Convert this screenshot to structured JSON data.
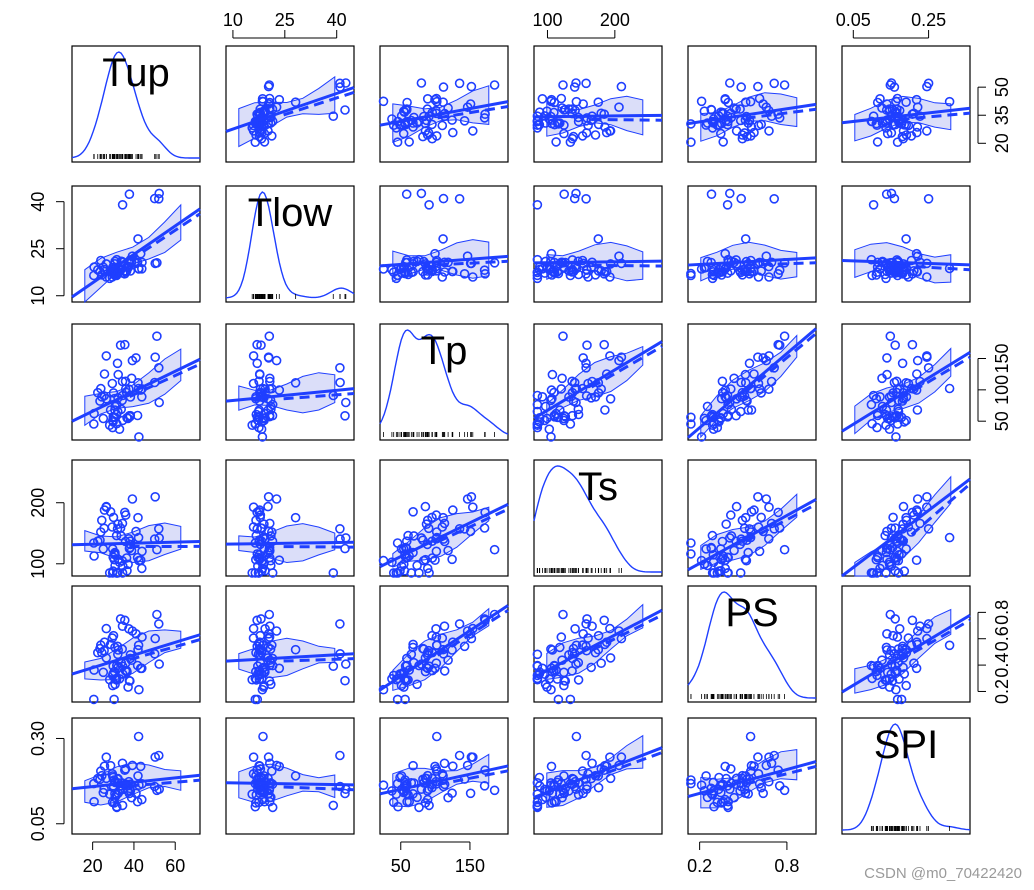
{
  "chart_data": {
    "type": "scatter-matrix",
    "variables": [
      {
        "name": "Tup",
        "range": [
          10,
          72
        ],
        "ticks": [
          20,
          40,
          60
        ],
        "tick_labels": [
          "20",
          "40",
          "60"
        ],
        "tick_side": "bottom"
      },
      {
        "name": "Tlow",
        "range": [
          8,
          45
        ],
        "ticks": [
          10,
          25,
          40
        ],
        "tick_labels": [
          "10",
          "25",
          "40"
        ],
        "tick_side": "top"
      },
      {
        "name": "Tp",
        "range": [
          20,
          205
        ],
        "ticks": [
          50,
          150
        ],
        "tick_labels": [
          "50",
          "150"
        ],
        "tick_side": "bottom"
      },
      {
        "name": "Ts",
        "range": [
          80,
          270
        ],
        "ticks": [
          100,
          200
        ],
        "tick_labels": [
          "100",
          "200"
        ],
        "tick_side": "top"
      },
      {
        "name": "PS",
        "range": [
          0.12,
          1.0
        ],
        "ticks": [
          0.2,
          0.8
        ],
        "tick_labels": [
          "0.2",
          "0.8"
        ],
        "tick_side": "bottom"
      },
      {
        "name": "SPI",
        "range": [
          0.02,
          0.36
        ],
        "ticks": [
          0.05,
          0.25
        ],
        "tick_labels": [
          "0.05",
          "0.25"
        ],
        "tick_side": "top"
      }
    ],
    "right_axis": {
      "Tup": {
        "ticks": [
          20,
          35,
          50
        ],
        "tick_labels": [
          "20",
          "35",
          "50"
        ]
      },
      "Tp": {
        "ticks": [
          50,
          100,
          150
        ],
        "tick_labels": [
          "50",
          "100",
          "150"
        ]
      },
      "PS": {
        "ticks": [
          0.2,
          0.4,
          0.6,
          0.8
        ],
        "tick_labels": [
          "0.2",
          "0.4",
          "0.6",
          "0.8"
        ]
      }
    },
    "left_axis": {
      "Tlow": {
        "ticks": [
          10,
          25,
          40
        ],
        "tick_labels": [
          "10",
          "25",
          "40"
        ]
      },
      "Ts": {
        "ticks": [
          100,
          200
        ],
        "tick_labels": [
          "100",
          "200"
        ]
      },
      "SPI": {
        "ticks": [
          0.05,
          0.3
        ],
        "tick_labels": [
          "0.05",
          "0.30"
        ]
      }
    },
    "n_points": 64,
    "point_color": "#1f3fff",
    "diagonal": "density with rug",
    "off_diagonal": "scatter with regression line, dashed smoother and shaded band"
  },
  "watermark": "CSDN @m0_70422420"
}
